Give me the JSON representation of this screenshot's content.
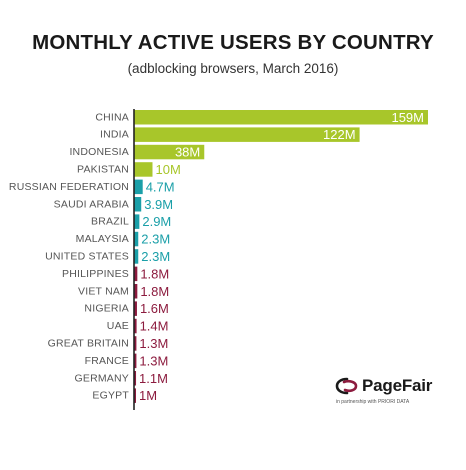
{
  "chart_data": {
    "type": "bar",
    "orientation": "horizontal",
    "title": "MONTHLY ACTIVE USERS BY COUNTRY",
    "subtitle": "(adblocking browsers, March 2016)",
    "categories": [
      "CHINA",
      "INDIA",
      "INDONESIA",
      "PAKISTAN",
      "RUSSIAN FEDERATION",
      "SAUDI ARABIA",
      "BRAZIL",
      "MALAYSIA",
      "UNITED STATES",
      "PHILIPPINES",
      "VIET NAM",
      "NIGERIA",
      "UAE",
      "GREAT BRITAIN",
      "FRANCE",
      "GERMANY",
      "EGYPT"
    ],
    "values": [
      159,
      122,
      38,
      10,
      4.7,
      3.9,
      2.9,
      2.3,
      2.3,
      1.8,
      1.8,
      1.6,
      1.4,
      1.3,
      1.3,
      1.1,
      1
    ],
    "value_labels": [
      "159M",
      "122M",
      "38M",
      "10M",
      "4.7M",
      "3.9M",
      "2.9M",
      "2.3M",
      "2.3M",
      "1.8M",
      "1.8M",
      "1.6M",
      "1.4M",
      "1.3M",
      "1.3M",
      "1.1M",
      "1M"
    ],
    "unit": "M",
    "xlim": [
      0,
      159
    ],
    "grid": false,
    "legend": "none"
  },
  "colors": {
    "tier_1": "#a8c62a",
    "tier_2": "#1a9fa8",
    "tier_3": "#8c1b3e",
    "value_on_bar": "#ffffff",
    "axis": "#222222"
  },
  "bar_colors": [
    "tier_1",
    "tier_1",
    "tier_1",
    "tier_1",
    "tier_2",
    "tier_2",
    "tier_2",
    "tier_2",
    "tier_2",
    "tier_3",
    "tier_3",
    "tier_3",
    "tier_3",
    "tier_3",
    "tier_3",
    "tier_3",
    "tier_3"
  ],
  "logo": {
    "name": "PageFair",
    "tagline": "in partnership with PRIORI DATA"
  }
}
